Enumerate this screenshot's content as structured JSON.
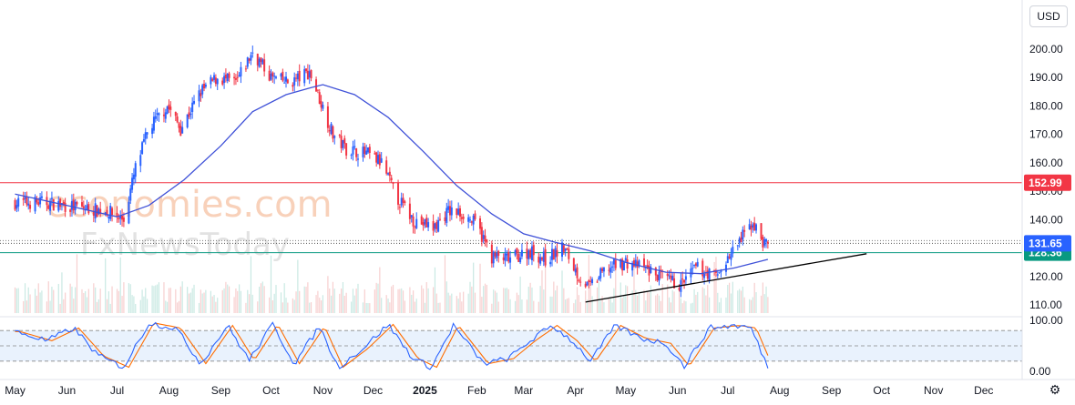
{
  "currency_button": "USD",
  "watermark": {
    "line1": "economies.com",
    "line2": "FxNewsToday"
  },
  "chart_data": {
    "type": "candlestick",
    "price_axis": {
      "ticks": [
        "110.00",
        "120.00",
        "130.00",
        "140.00",
        "150.00",
        "160.00",
        "170.00",
        "180.00",
        "190.00",
        "200.00"
      ],
      "range": [
        100,
        200
      ]
    },
    "stoch_axis": {
      "ticks": [
        "0.00",
        "100.00"
      ],
      "range": [
        0,
        100
      ],
      "levels": [
        80,
        50,
        20
      ]
    },
    "time_axis": {
      "labels": [
        "May",
        "Jun",
        "Jul",
        "Aug",
        "Sep",
        "Oct",
        "Nov",
        "Dec",
        "2025",
        "Feb",
        "Mar",
        "Apr",
        "May",
        "Jun",
        "Jul",
        "Aug",
        "Sep",
        "Oct",
        "Nov",
        "Dec"
      ]
    },
    "horizontal_levels": [
      {
        "value": 152.99,
        "label": "152.99",
        "color": "#f23645"
      },
      {
        "value": 128.36,
        "label": "128.36",
        "color": "#089981"
      }
    ],
    "last_price": {
      "value": 131.65,
      "label": "131.65",
      "color": "#2962ff"
    },
    "trendline": {
      "from": [
        "2025-04-07",
        111
      ],
      "to": [
        "2025-09-22",
        128
      ],
      "color": "#000000"
    },
    "moving_average_color": "#3f51d8",
    "up_color": "#2962ff",
    "down_color": "#f23645",
    "close_path": [
      [
        "2024-05-01",
        146
      ],
      [
        "2024-05-20",
        146
      ],
      [
        "2024-06-10",
        144
      ],
      [
        "2024-06-25",
        143
      ],
      [
        "2024-07-05",
        140
      ],
      [
        "2024-07-12",
        158
      ],
      [
        "2024-07-20",
        172
      ],
      [
        "2024-07-31",
        180
      ],
      [
        "2024-08-08",
        172
      ],
      [
        "2024-08-20",
        185
      ],
      [
        "2024-08-30",
        190
      ],
      [
        "2024-09-10",
        188
      ],
      [
        "2024-09-20",
        199
      ],
      [
        "2024-10-01",
        190
      ],
      [
        "2024-10-12",
        188
      ],
      [
        "2024-10-24",
        192
      ],
      [
        "2024-10-31",
        181
      ],
      [
        "2024-11-07",
        170
      ],
      [
        "2024-11-15",
        165
      ],
      [
        "2024-11-28",
        163
      ],
      [
        "2024-12-06",
        160
      ],
      [
        "2024-12-15",
        148
      ],
      [
        "2024-12-25",
        140
      ],
      [
        "2025-01-06",
        137
      ],
      [
        "2025-01-15",
        143
      ],
      [
        "2025-01-24",
        142
      ],
      [
        "2025-02-01",
        138
      ],
      [
        "2025-02-10",
        127
      ],
      [
        "2025-02-20",
        126
      ],
      [
        "2025-03-05",
        129
      ],
      [
        "2025-03-14",
        126
      ],
      [
        "2025-03-25",
        130
      ],
      [
        "2025-04-03",
        120
      ],
      [
        "2025-04-09",
        116
      ],
      [
        "2025-04-20",
        123
      ],
      [
        "2025-05-01",
        125
      ],
      [
        "2025-05-12",
        123
      ],
      [
        "2025-05-24",
        119
      ],
      [
        "2025-06-03",
        117
      ],
      [
        "2025-06-12",
        123
      ],
      [
        "2025-06-24",
        120
      ],
      [
        "2025-07-02",
        127
      ],
      [
        "2025-07-10",
        134
      ],
      [
        "2025-07-16",
        139
      ],
      [
        "2025-07-22",
        132
      ],
      [
        "2025-07-25",
        131.65
      ]
    ],
    "ma_path": [
      [
        "2024-05-01",
        149
      ],
      [
        "2024-06-01",
        145
      ],
      [
        "2024-07-01",
        141
      ],
      [
        "2024-07-20",
        145
      ],
      [
        "2024-08-10",
        154
      ],
      [
        "2024-09-01",
        166
      ],
      [
        "2024-09-20",
        178
      ],
      [
        "2024-10-10",
        184
      ],
      [
        "2024-10-25",
        186.5
      ],
      [
        "2024-11-01",
        187.5
      ],
      [
        "2024-11-20",
        184
      ],
      [
        "2024-12-10",
        176
      ],
      [
        "2024-12-31",
        164
      ],
      [
        "2025-01-20",
        152
      ],
      [
        "2025-02-10",
        142
      ],
      [
        "2025-03-01",
        135
      ],
      [
        "2025-03-20",
        132
      ],
      [
        "2025-04-10",
        129
      ],
      [
        "2025-05-01",
        125
      ],
      [
        "2025-05-25",
        121.5
      ],
      [
        "2025-06-15",
        121
      ],
      [
        "2025-07-05",
        123
      ],
      [
        "2025-07-25",
        126
      ]
    ],
    "stoch_path": [
      [
        "2024-05-01",
        78
      ],
      [
        "2024-05-20",
        60
      ],
      [
        "2024-06-05",
        85
      ],
      [
        "2024-06-20",
        30
      ],
      [
        "2024-07-05",
        8
      ],
      [
        "2024-07-20",
        95
      ],
      [
        "2024-08-05",
        85
      ],
      [
        "2024-08-20",
        15
      ],
      [
        "2024-09-05",
        90
      ],
      [
        "2024-09-18",
        22
      ],
      [
        "2024-10-02",
        92
      ],
      [
        "2024-10-15",
        15
      ],
      [
        "2024-10-30",
        88
      ],
      [
        "2024-11-10",
        8
      ],
      [
        "2024-11-25",
        45
      ],
      [
        "2024-12-10",
        92
      ],
      [
        "2024-12-25",
        25
      ],
      [
        "2025-01-05",
        8
      ],
      [
        "2025-01-18",
        90
      ],
      [
        "2025-02-05",
        15
      ],
      [
        "2025-02-20",
        25
      ],
      [
        "2025-03-05",
        60
      ],
      [
        "2025-03-18",
        90
      ],
      [
        "2025-03-30",
        60
      ],
      [
        "2025-04-10",
        20
      ],
      [
        "2025-04-25",
        90
      ],
      [
        "2025-05-10",
        65
      ],
      [
        "2025-05-25",
        55
      ],
      [
        "2025-06-05",
        10
      ],
      [
        "2025-06-20",
        85
      ],
      [
        "2025-07-05",
        90
      ],
      [
        "2025-07-15",
        85
      ],
      [
        "2025-07-25",
        8
      ]
    ],
    "visible_start": "2024-04-22",
    "visible_end": "2025-12-24"
  }
}
